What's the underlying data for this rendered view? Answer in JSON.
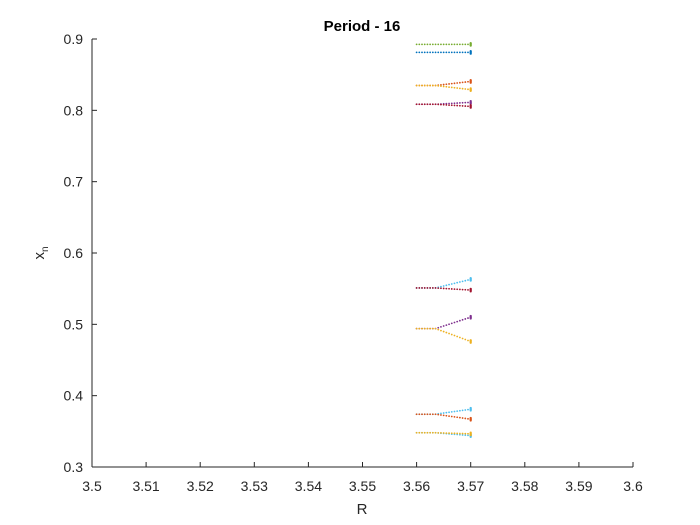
{
  "chart_data": {
    "type": "scatter",
    "title": "Period - 16",
    "xlabel": "R",
    "ylabel_main": "x",
    "ylabel_sub": "n",
    "xlim": [
      3.5,
      3.6
    ],
    "ylim": [
      0.3,
      0.9
    ],
    "xticks": [
      3.5,
      3.51,
      3.52,
      3.53,
      3.54,
      3.55,
      3.56,
      3.57,
      3.58,
      3.59,
      3.6
    ],
    "xtick_labels": [
      "3.5",
      "3.51",
      "3.52",
      "3.53",
      "3.54",
      "3.55",
      "3.56",
      "3.57",
      "3.58",
      "3.59",
      "3.6"
    ],
    "yticks": [
      0.3,
      0.4,
      0.5,
      0.6,
      0.7,
      0.8,
      0.9
    ],
    "ytick_labels": [
      "0.3",
      "0.4",
      "0.5",
      "0.6",
      "0.7",
      "0.8",
      "0.9"
    ],
    "grid": false,
    "r_range": [
      3.56,
      3.57
    ],
    "colors": [
      "#0072BD",
      "#D95319",
      "#EDB120",
      "#7E2F8E",
      "#77AC30",
      "#4DBEEE",
      "#A2142F"
    ],
    "series": [
      {
        "values_start": 0.8925,
        "values_end": 0.8925,
        "color": "#77AC30"
      },
      {
        "values_start": 0.8812,
        "values_end": 0.8812,
        "color": "#0072BD"
      },
      {
        "values_start": 0.8348,
        "values_end": 0.8405,
        "color": "#D95319"
      },
      {
        "values_start": 0.8348,
        "values_end": 0.829,
        "color": "#EDB120"
      },
      {
        "values_start": 0.8085,
        "values_end": 0.8112,
        "color": "#7E2F8E"
      },
      {
        "values_start": 0.8085,
        "values_end": 0.8055,
        "color": "#A2142F"
      },
      {
        "values_start": 0.551,
        "values_end": 0.563,
        "color": "#4DBEEE"
      },
      {
        "values_start": 0.551,
        "values_end": 0.548,
        "color": "#A2142F"
      },
      {
        "values_start": 0.494,
        "values_end": 0.51,
        "color": "#7E2F8E"
      },
      {
        "values_start": 0.494,
        "values_end": 0.476,
        "color": "#EDB120"
      },
      {
        "values_start": 0.374,
        "values_end": 0.381,
        "color": "#4DBEEE"
      },
      {
        "values_start": 0.374,
        "values_end": 0.367,
        "color": "#D95319"
      },
      {
        "values_start": 0.348,
        "values_end": 0.344,
        "color": "#4DBEEE"
      },
      {
        "values_start": 0.348,
        "values_end": 0.3465,
        "color": "#EDB120"
      }
    ]
  }
}
